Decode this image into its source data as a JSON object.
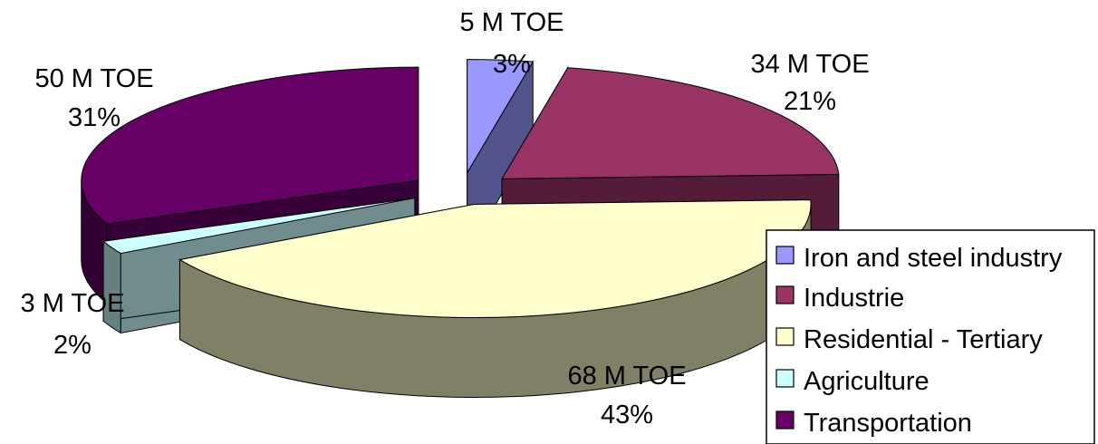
{
  "chart_data": {
    "type": "pie",
    "style": "3d-exploded",
    "categories": [
      "Iron and steel industry",
      "Industrie",
      "Residential - Tertiary",
      "Agriculture",
      "Transportation"
    ],
    "values": [
      5,
      34,
      68,
      3,
      50
    ],
    "unit": "M TOE",
    "percent_labels": [
      "3%",
      "21%",
      "43%",
      "2%",
      "31%"
    ],
    "value_labels": [
      "5 M TOE",
      "34 M TOE",
      "68 M TOE",
      "3 M TOE",
      "50 M TOE"
    ],
    "colors": [
      "#9999ff",
      "#993366",
      "#ffffcc",
      "#ccffff",
      "#660066"
    ],
    "legend": {
      "position": "right",
      "entries": [
        {
          "label": "Iron and steel industry",
          "color": "#9999ff"
        },
        {
          "label": "Industrie",
          "color": "#993366"
        },
        {
          "label": "Residential - Tertiary",
          "color": "#ffffcc"
        },
        {
          "label": "Agriculture",
          "color": "#ccffff"
        },
        {
          "label": "Transportation",
          "color": "#660066"
        }
      ]
    }
  }
}
